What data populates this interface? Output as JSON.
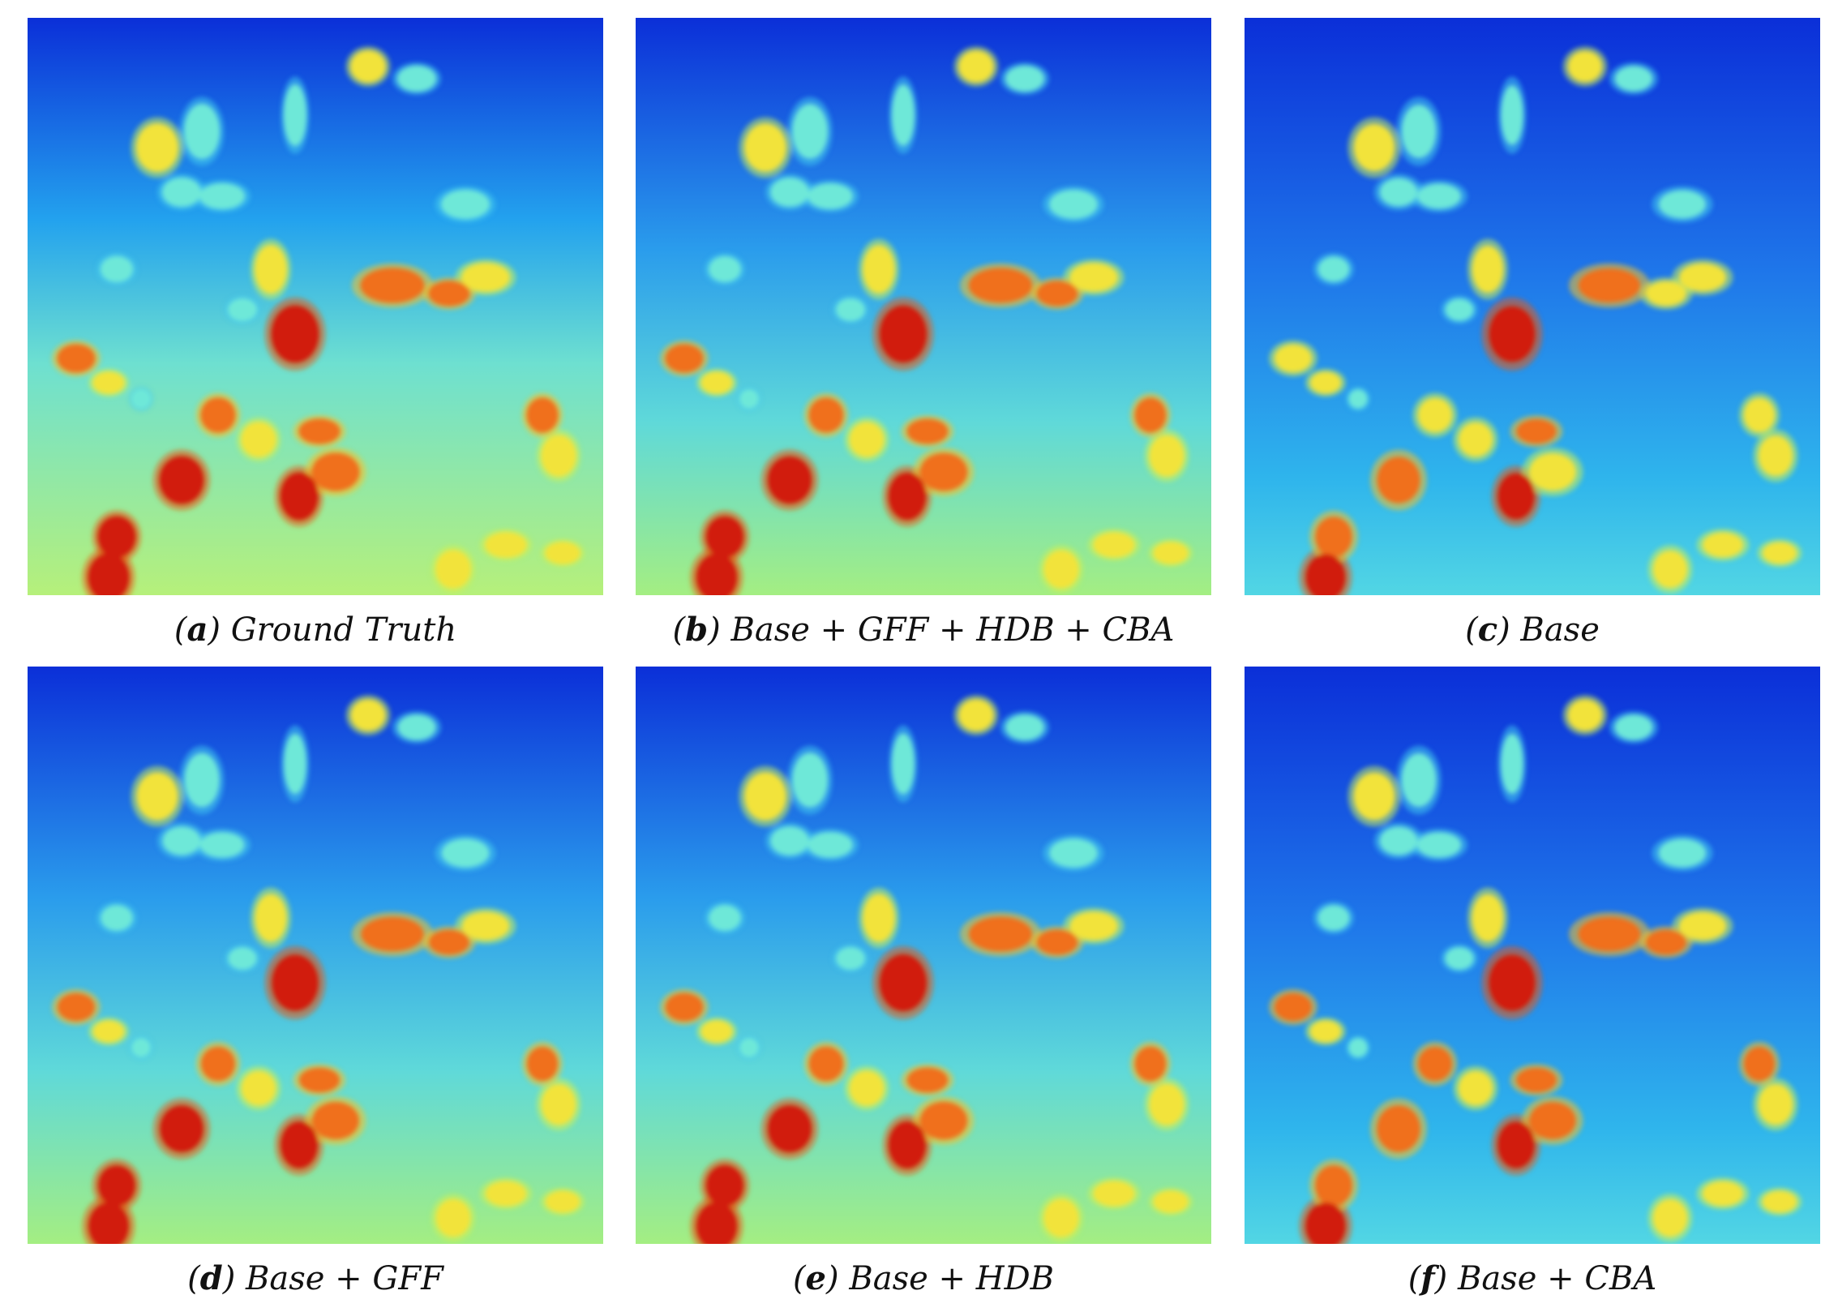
{
  "panels": [
    {
      "letter": "a",
      "label": "Ground Truth",
      "variant": "gt"
    },
    {
      "letter": "b",
      "label": "Base + GFF + HDB + CBA",
      "variant": "full"
    },
    {
      "letter": "c",
      "label": "Base",
      "variant": "base"
    },
    {
      "letter": "d",
      "label": "Base + GFF",
      "variant": "gff"
    },
    {
      "letter": "e",
      "label": "Base + HDB",
      "variant": "hdb"
    },
    {
      "letter": "f",
      "label": "Base + CBA",
      "variant": "cba"
    }
  ],
  "colormap": "jet",
  "colors": {
    "low": "#0a2bd6",
    "mid": "#35c8ee",
    "high_mid": "#e7f23a",
    "high": "#d8180c"
  }
}
